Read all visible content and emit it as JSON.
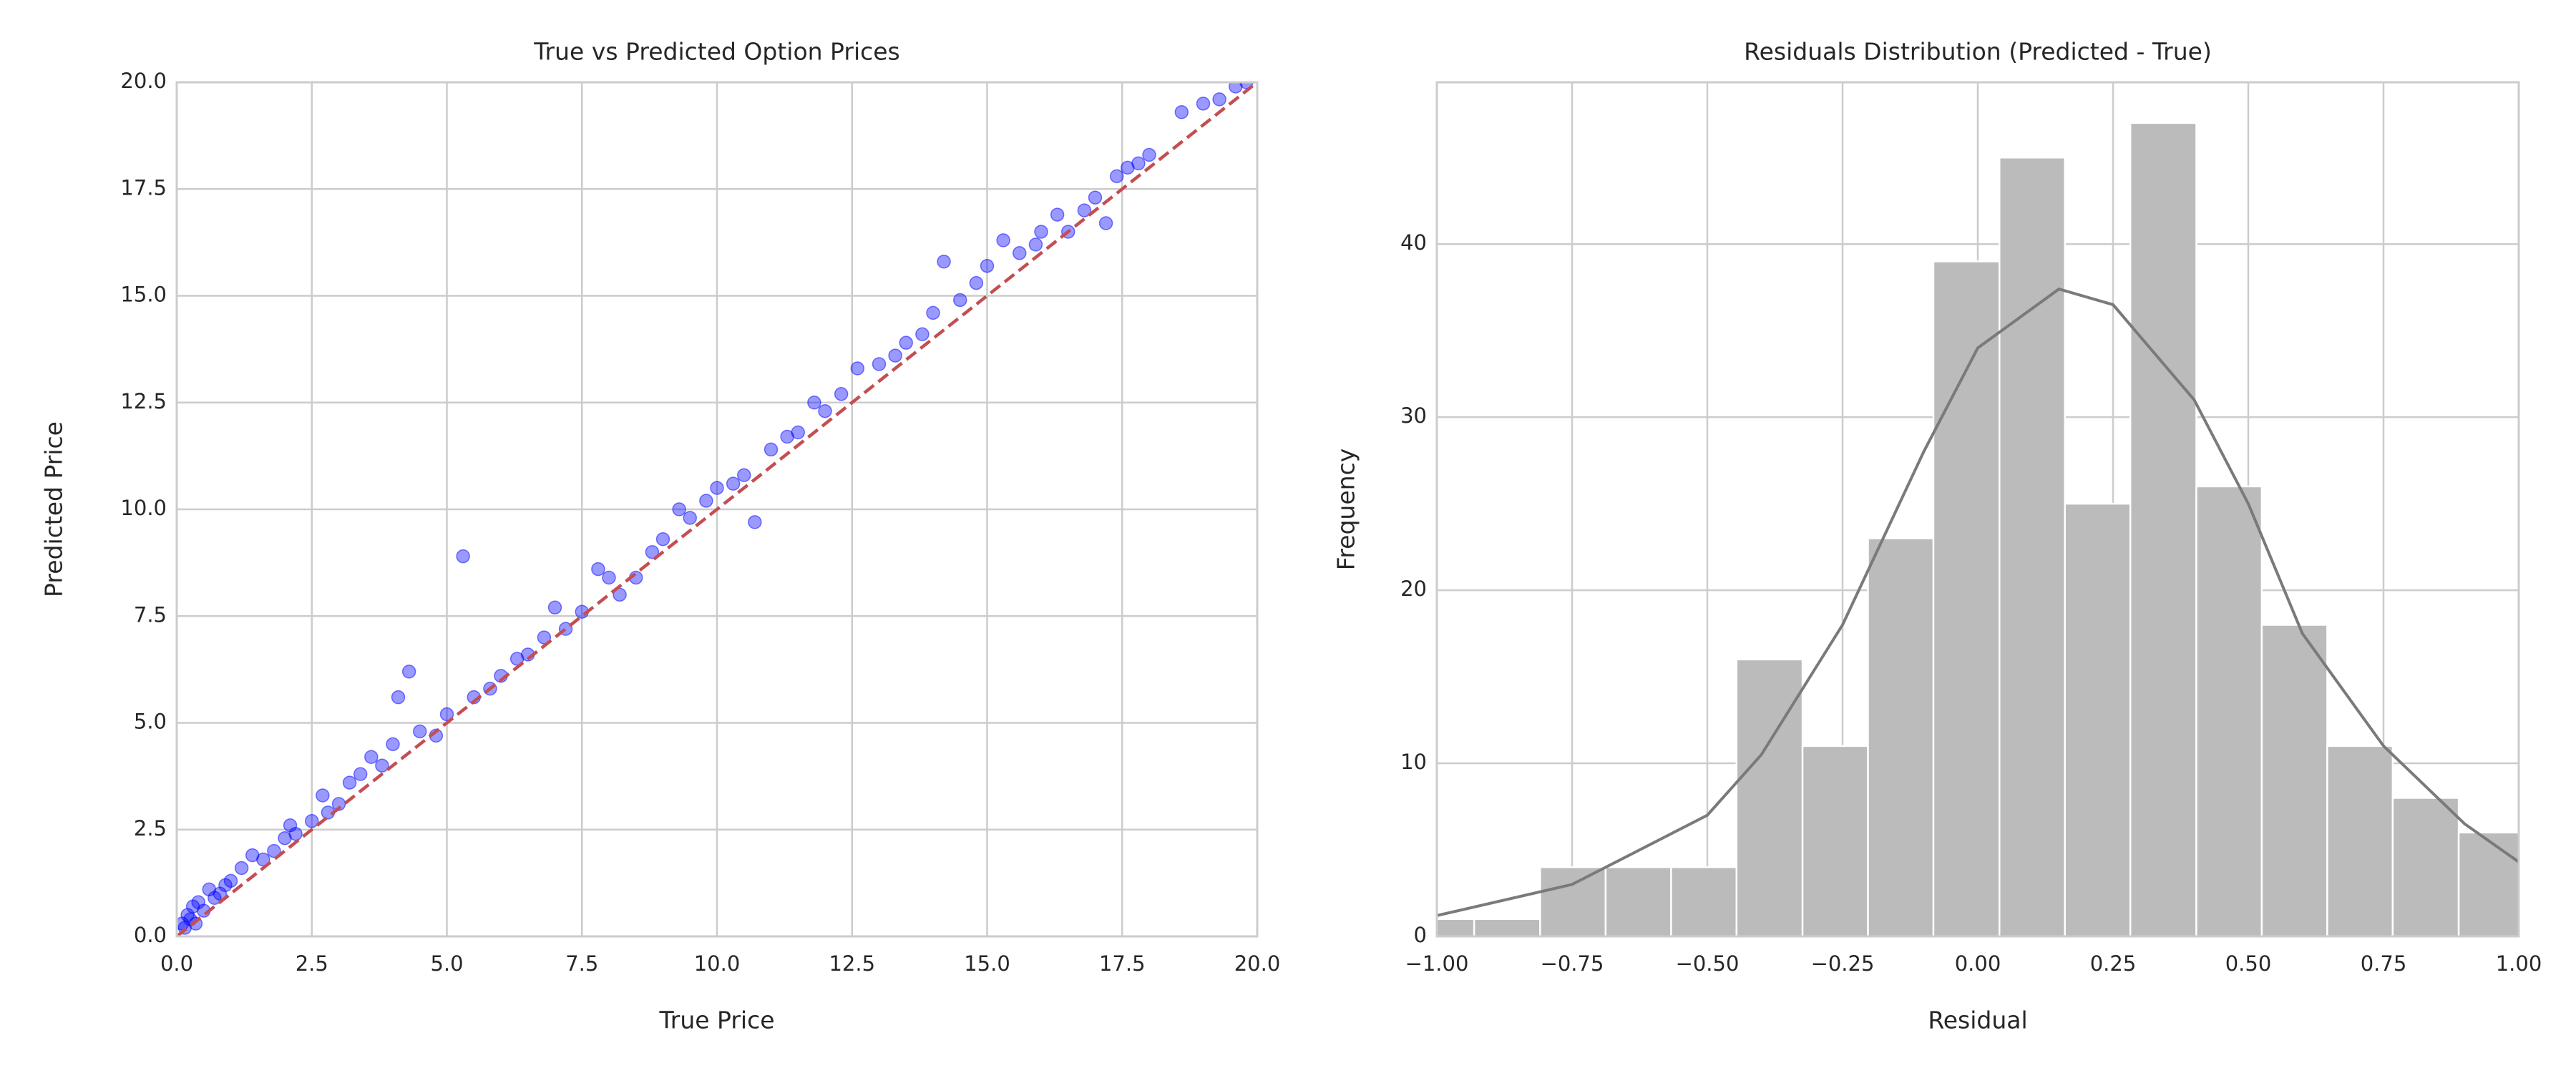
{
  "chart_data": [
    {
      "type": "scatter",
      "title": "True vs Predicted Option Prices",
      "xlabel": "True Price",
      "ylabel": "Predicted Price",
      "x": [
        0.1,
        0.15,
        0.2,
        0.25,
        0.3,
        0.35,
        0.4,
        0.5,
        0.6,
        0.7,
        0.8,
        0.9,
        1.0,
        1.2,
        1.4,
        1.6,
        1.8,
        2.0,
        2.1,
        2.2,
        2.5,
        2.7,
        2.8,
        3.0,
        3.2,
        3.4,
        3.6,
        3.8,
        4.0,
        4.1,
        4.3,
        4.5,
        4.8,
        5.0,
        5.3,
        5.5,
        5.8,
        6.0,
        6.3,
        6.5,
        6.8,
        7.0,
        7.2,
        7.5,
        7.8,
        8.0,
        8.2,
        8.5,
        8.8,
        9.0,
        9.3,
        9.5,
        9.8,
        10.0,
        10.3,
        10.5,
        10.7,
        11.0,
        11.3,
        11.5,
        11.8,
        12.0,
        12.3,
        12.6,
        13.0,
        13.3,
        13.5,
        13.8,
        14.0,
        14.2,
        14.5,
        14.8,
        15.0,
        15.3,
        15.6,
        15.9,
        16.0,
        16.3,
        16.5,
        16.8,
        17.0,
        17.2,
        17.4,
        17.6,
        17.8,
        18.0,
        18.6,
        19.0,
        19.3,
        19.6,
        19.8
      ],
      "y": [
        0.3,
        0.2,
        0.5,
        0.4,
        0.7,
        0.3,
        0.8,
        0.6,
        1.1,
        0.9,
        1.0,
        1.2,
        1.3,
        1.6,
        1.9,
        1.8,
        2.0,
        2.3,
        2.6,
        2.4,
        2.7,
        3.3,
        2.9,
        3.1,
        3.6,
        3.8,
        4.2,
        4.0,
        4.5,
        5.6,
        6.2,
        4.8,
        4.7,
        5.2,
        8.9,
        5.6,
        5.8,
        6.1,
        6.5,
        6.6,
        7.0,
        7.7,
        7.2,
        7.6,
        8.6,
        8.4,
        8.0,
        8.4,
        9.0,
        9.3,
        10.0,
        9.8,
        10.2,
        10.5,
        10.6,
        10.8,
        9.7,
        11.4,
        11.7,
        11.8,
        12.5,
        12.3,
        12.7,
        13.3,
        13.4,
        13.6,
        13.9,
        14.1,
        14.6,
        15.8,
        14.9,
        15.3,
        15.7,
        16.3,
        16.0,
        16.2,
        16.5,
        16.9,
        16.5,
        17.0,
        17.3,
        16.7,
        17.8,
        18.0,
        18.1,
        18.3,
        19.3,
        19.5,
        19.6,
        19.9,
        20.0
      ],
      "color": "#0000ff",
      "reference_line": {
        "x": [
          0,
          20
        ],
        "y": [
          0,
          20
        ],
        "color": "#c44e52"
      },
      "xlim": [
        0,
        20
      ],
      "ylim": [
        0,
        20
      ],
      "xticks": [
        {
          "value": 0,
          "label": "0.0"
        },
        {
          "value": 2.5,
          "label": "2.5"
        },
        {
          "value": 5,
          "label": "5.0"
        },
        {
          "value": 7.5,
          "label": "7.5"
        },
        {
          "value": 10,
          "label": "10.0"
        },
        {
          "value": 12.5,
          "label": "12.5"
        },
        {
          "value": 15,
          "label": "15.0"
        },
        {
          "value": 17.5,
          "label": "17.5"
        },
        {
          "value": 20,
          "label": "20.0"
        }
      ],
      "yticks": [
        {
          "value": 0,
          "label": "0.0"
        },
        {
          "value": 2.5,
          "label": "2.5"
        },
        {
          "value": 5,
          "label": "5.0"
        },
        {
          "value": 7.5,
          "label": "7.5"
        },
        {
          "value": 10,
          "label": "10.0"
        },
        {
          "value": 12.5,
          "label": "12.5"
        },
        {
          "value": 15,
          "label": "15.0"
        },
        {
          "value": 17.5,
          "label": "17.5"
        },
        {
          "value": 20,
          "label": "20.0"
        }
      ],
      "grid": true
    },
    {
      "type": "histogram",
      "title": "Residuals Distribution (Predicted - True)",
      "xlabel": "Residual",
      "ylabel": "Frequency",
      "bins": [
        -1.052,
        -0.931,
        -0.809,
        -0.688,
        -0.567,
        -0.446,
        -0.324,
        -0.203,
        -0.082,
        0.04,
        0.161,
        0.282,
        0.404,
        0.525,
        0.646,
        0.767,
        0.889,
        1.01
      ],
      "values": [
        1,
        1,
        4,
        4,
        4,
        16,
        11,
        23,
        39,
        45,
        25,
        47,
        26,
        18,
        11,
        8,
        6
      ],
      "color": "#bbbbbb",
      "kde": {
        "x": [
          -1.0,
          -0.75,
          -0.5,
          -0.4,
          -0.25,
          -0.1,
          0.0,
          0.15,
          0.25,
          0.4,
          0.5,
          0.6,
          0.75,
          0.9,
          1.0
        ],
        "y": [
          1.2,
          3,
          7,
          10.5,
          18,
          28,
          34,
          37.4,
          36.5,
          31,
          25,
          17.5,
          11,
          6.5,
          4.3
        ],
        "color": "#7a7a7a"
      },
      "xlim": [
        -1,
        1
      ],
      "ylim": [
        0,
        49.35
      ],
      "xticks": [
        {
          "value": -1,
          "label": "−1.00"
        },
        {
          "value": -0.75,
          "label": "−0.75"
        },
        {
          "value": -0.5,
          "label": "−0.50"
        },
        {
          "value": -0.25,
          "label": "−0.25"
        },
        {
          "value": 0,
          "label": "0.00"
        },
        {
          "value": 0.25,
          "label": "0.25"
        },
        {
          "value": 0.5,
          "label": "0.50"
        },
        {
          "value": 0.75,
          "label": "0.75"
        },
        {
          "value": 1,
          "label": "1.00"
        }
      ],
      "yticks": [
        0,
        10,
        20,
        30,
        40
      ],
      "grid": true
    }
  ]
}
